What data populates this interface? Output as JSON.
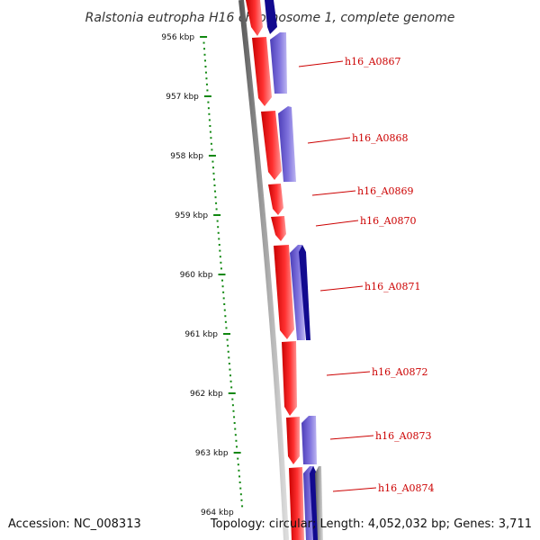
{
  "title": "Ralstonia eutropha H16 chromosome 1, complete genome",
  "footer": {
    "accession": "Accession: NC_008313",
    "summary": "Topology: circular; Length: 4,052,032 bp; Genes: 3,711"
  },
  "colors": {
    "forward_cds": "#ee1111",
    "reverse_cds": "#6655cc",
    "reverse_cds_dark": "#120a8f",
    "backbone": "#808080",
    "ruler": "#118811",
    "label": "#cc0000"
  },
  "ruler_ticks": [
    {
      "kbp": 956,
      "label": "956 kbp"
    },
    {
      "kbp": 957,
      "label": "957 kbp"
    },
    {
      "kbp": 958,
      "label": "958 kbp"
    },
    {
      "kbp": 959,
      "label": "959 kbp"
    },
    {
      "kbp": 960,
      "label": "960 kbp"
    },
    {
      "kbp": 961,
      "label": "961 kbp"
    },
    {
      "kbp": 962,
      "label": "962 kbp"
    },
    {
      "kbp": 963,
      "label": "963 kbp"
    },
    {
      "kbp": 964,
      "label": "964 kbp"
    }
  ],
  "gene_labels": [
    {
      "id": "h16_A0867"
    },
    {
      "id": "h16_A0868"
    },
    {
      "id": "h16_A0869"
    },
    {
      "id": "h16_A0870"
    },
    {
      "id": "h16_A0871"
    },
    {
      "id": "h16_A0872"
    },
    {
      "id": "h16_A0873"
    },
    {
      "id": "h16_A0874"
    }
  ]
}
